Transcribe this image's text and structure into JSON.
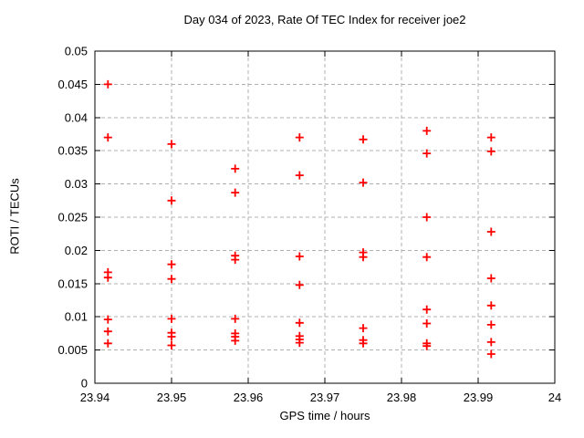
{
  "chart_data": {
    "type": "scatter",
    "title": "Day 034 of 2023, Rate Of TEC Index for receiver joe2",
    "xlabel": "GPS time / hours",
    "ylabel": "ROTI / TECUs",
    "xlim": [
      23.94,
      24
    ],
    "ylim": [
      0,
      0.05
    ],
    "x_ticks": [
      23.94,
      23.95,
      23.96,
      23.97,
      23.98,
      23.99,
      24
    ],
    "x_tick_labels": [
      "23.94",
      "23.95",
      "23.96",
      "23.97",
      "23.98",
      "23.99",
      "24"
    ],
    "y_ticks": [
      0,
      0.005,
      0.01,
      0.015,
      0.02,
      0.025,
      0.03,
      0.035,
      0.04,
      0.045,
      0.05
    ],
    "y_tick_labels": [
      "0",
      "0.005",
      "0.01",
      "0.015",
      "0.02",
      "0.025",
      "0.03",
      "0.035",
      "0.04",
      "0.045",
      "0.05"
    ],
    "grid": true,
    "legend": "none",
    "marker": "plus",
    "marker_color": "#ff0000",
    "grid_color": "#b0b0b0",
    "series": [
      {
        "name": "ROTI",
        "points": [
          [
            23.9417,
            0.045
          ],
          [
            23.9417,
            0.037
          ],
          [
            23.9417,
            0.0167
          ],
          [
            23.9417,
            0.0159
          ],
          [
            23.9417,
            0.0096
          ],
          [
            23.9417,
            0.0078
          ],
          [
            23.9417,
            0.006
          ],
          [
            23.95,
            0.036
          ],
          [
            23.95,
            0.0275
          ],
          [
            23.95,
            0.0179
          ],
          [
            23.95,
            0.0157
          ],
          [
            23.95,
            0.0097
          ],
          [
            23.95,
            0.0076
          ],
          [
            23.95,
            0.007
          ],
          [
            23.95,
            0.0057
          ],
          [
            23.9583,
            0.0323
          ],
          [
            23.9583,
            0.0287
          ],
          [
            23.9583,
            0.0192
          ],
          [
            23.9583,
            0.0186
          ],
          [
            23.9583,
            0.0097
          ],
          [
            23.9583,
            0.0075
          ],
          [
            23.9583,
            0.007
          ],
          [
            23.9583,
            0.0064
          ],
          [
            23.9667,
            0.037
          ],
          [
            23.9667,
            0.0313
          ],
          [
            23.9667,
            0.0191
          ],
          [
            23.9667,
            0.0148
          ],
          [
            23.9667,
            0.0091
          ],
          [
            23.9667,
            0.0071
          ],
          [
            23.9667,
            0.0066
          ],
          [
            23.9667,
            0.0061
          ],
          [
            23.975,
            0.0367
          ],
          [
            23.975,
            0.0302
          ],
          [
            23.975,
            0.0197
          ],
          [
            23.975,
            0.019
          ],
          [
            23.975,
            0.0083
          ],
          [
            23.975,
            0.0065
          ],
          [
            23.975,
            0.006
          ],
          [
            23.9833,
            0.038
          ],
          [
            23.9833,
            0.0346
          ],
          [
            23.9833,
            0.025
          ],
          [
            23.9833,
            0.019
          ],
          [
            23.9833,
            0.0111
          ],
          [
            23.9833,
            0.009
          ],
          [
            23.9833,
            0.006
          ],
          [
            23.9833,
            0.0056
          ],
          [
            23.9917,
            0.037
          ],
          [
            23.9917,
            0.0349
          ],
          [
            23.9917,
            0.0228
          ],
          [
            23.9917,
            0.0158
          ],
          [
            23.9917,
            0.0117
          ],
          [
            23.9917,
            0.0088
          ],
          [
            23.9917,
            0.0062
          ],
          [
            23.9917,
            0.0044
          ]
        ]
      }
    ]
  }
}
